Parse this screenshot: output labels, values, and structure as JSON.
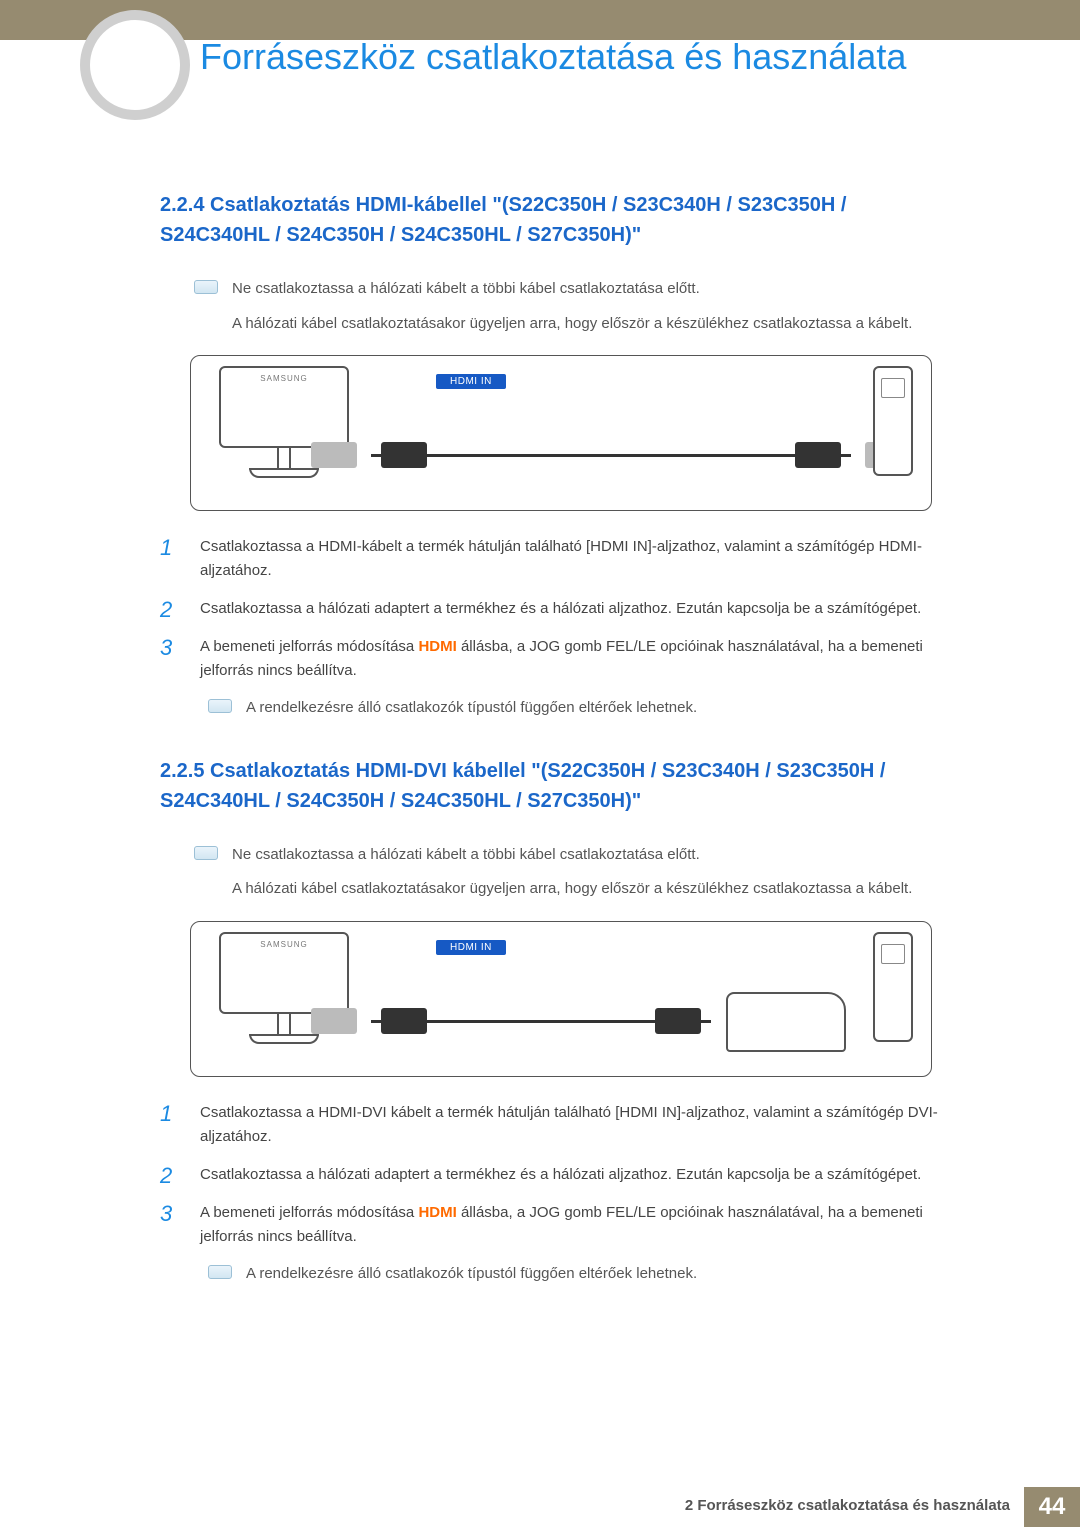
{
  "chapter_title": "Forráseszköz csatlakoztatása és használata",
  "section_224": {
    "heading": "2.2.4   Csatlakoztatás HDMI-kábellel \"(S22C350H / S23C340H / S23C350H / S24C340HL / S24C350H / S24C350HL / S27C350H)\"",
    "notes": [
      "Ne csatlakoztassa a hálózati kábelt a többi kábel csatlakoztatása előtt.",
      "A hálózati kábel csatlakoztatásakor ügyeljen arra, hogy először a készülékhez csatlakoztassa a kábelt."
    ],
    "hdmi_label": "HDMI IN",
    "steps": [
      "Csatlakoztassa a HDMI-kábelt a termék hátulján található [HDMI IN]-aljzathoz, valamint a számítógép HDMI-aljzatához.",
      "Csatlakoztassa a hálózati adaptert a termékhez és a hálózati aljzathoz. Ezután kapcsolja be a számítógépet.",
      {
        "pre": "A bemeneti jelforrás módosítása ",
        "bold": "HDMI",
        "post": " állásba, a JOG gomb FEL/LE opcióinak használatával, ha a bemeneti jelforrás nincs beállítva."
      }
    ],
    "sub_note": "A rendelkezésre álló csatlakozók típustól függően eltérőek lehetnek."
  },
  "section_225": {
    "heading": "2.2.5   Csatlakoztatás HDMI-DVI kábellel \"(S22C350H / S23C340H / S23C350H / S24C340HL / S24C350H / S24C350HL / S27C350H)\"",
    "notes": [
      "Ne csatlakoztassa a hálózati kábelt a többi kábel csatlakoztatása előtt.",
      "A hálózati kábel csatlakoztatásakor ügyeljen arra, hogy először a készülékhez csatlakoztassa a kábelt."
    ],
    "hdmi_label": "HDMI IN",
    "steps": [
      "Csatlakoztassa a HDMI-DVI kábelt a termék hátulján található [HDMI IN]-aljzathoz, valamint a számítógép DVI-aljzatához.",
      "Csatlakoztassa a hálózati adaptert a termékhez és a hálózati aljzathoz. Ezután kapcsolja be a számítógépet.",
      {
        "pre": "A bemeneti jelforrás módosítása ",
        "bold": "HDMI",
        "post": " állásba, a JOG gomb FEL/LE opcióinak használatával, ha a bemeneti jelforrás nincs beállítva."
      }
    ],
    "sub_note": "A rendelkezésre álló csatlakozók típustól függően eltérőek lehetnek."
  },
  "footer": {
    "text": "2 Forráseszköz csatlakoztatása és használata",
    "page": "44"
  },
  "colors": {
    "header_band": "#968b70",
    "title_blue": "#1b8ae2",
    "heading_blue": "#1b67c9",
    "highlight_orange": "#ff6a00"
  }
}
